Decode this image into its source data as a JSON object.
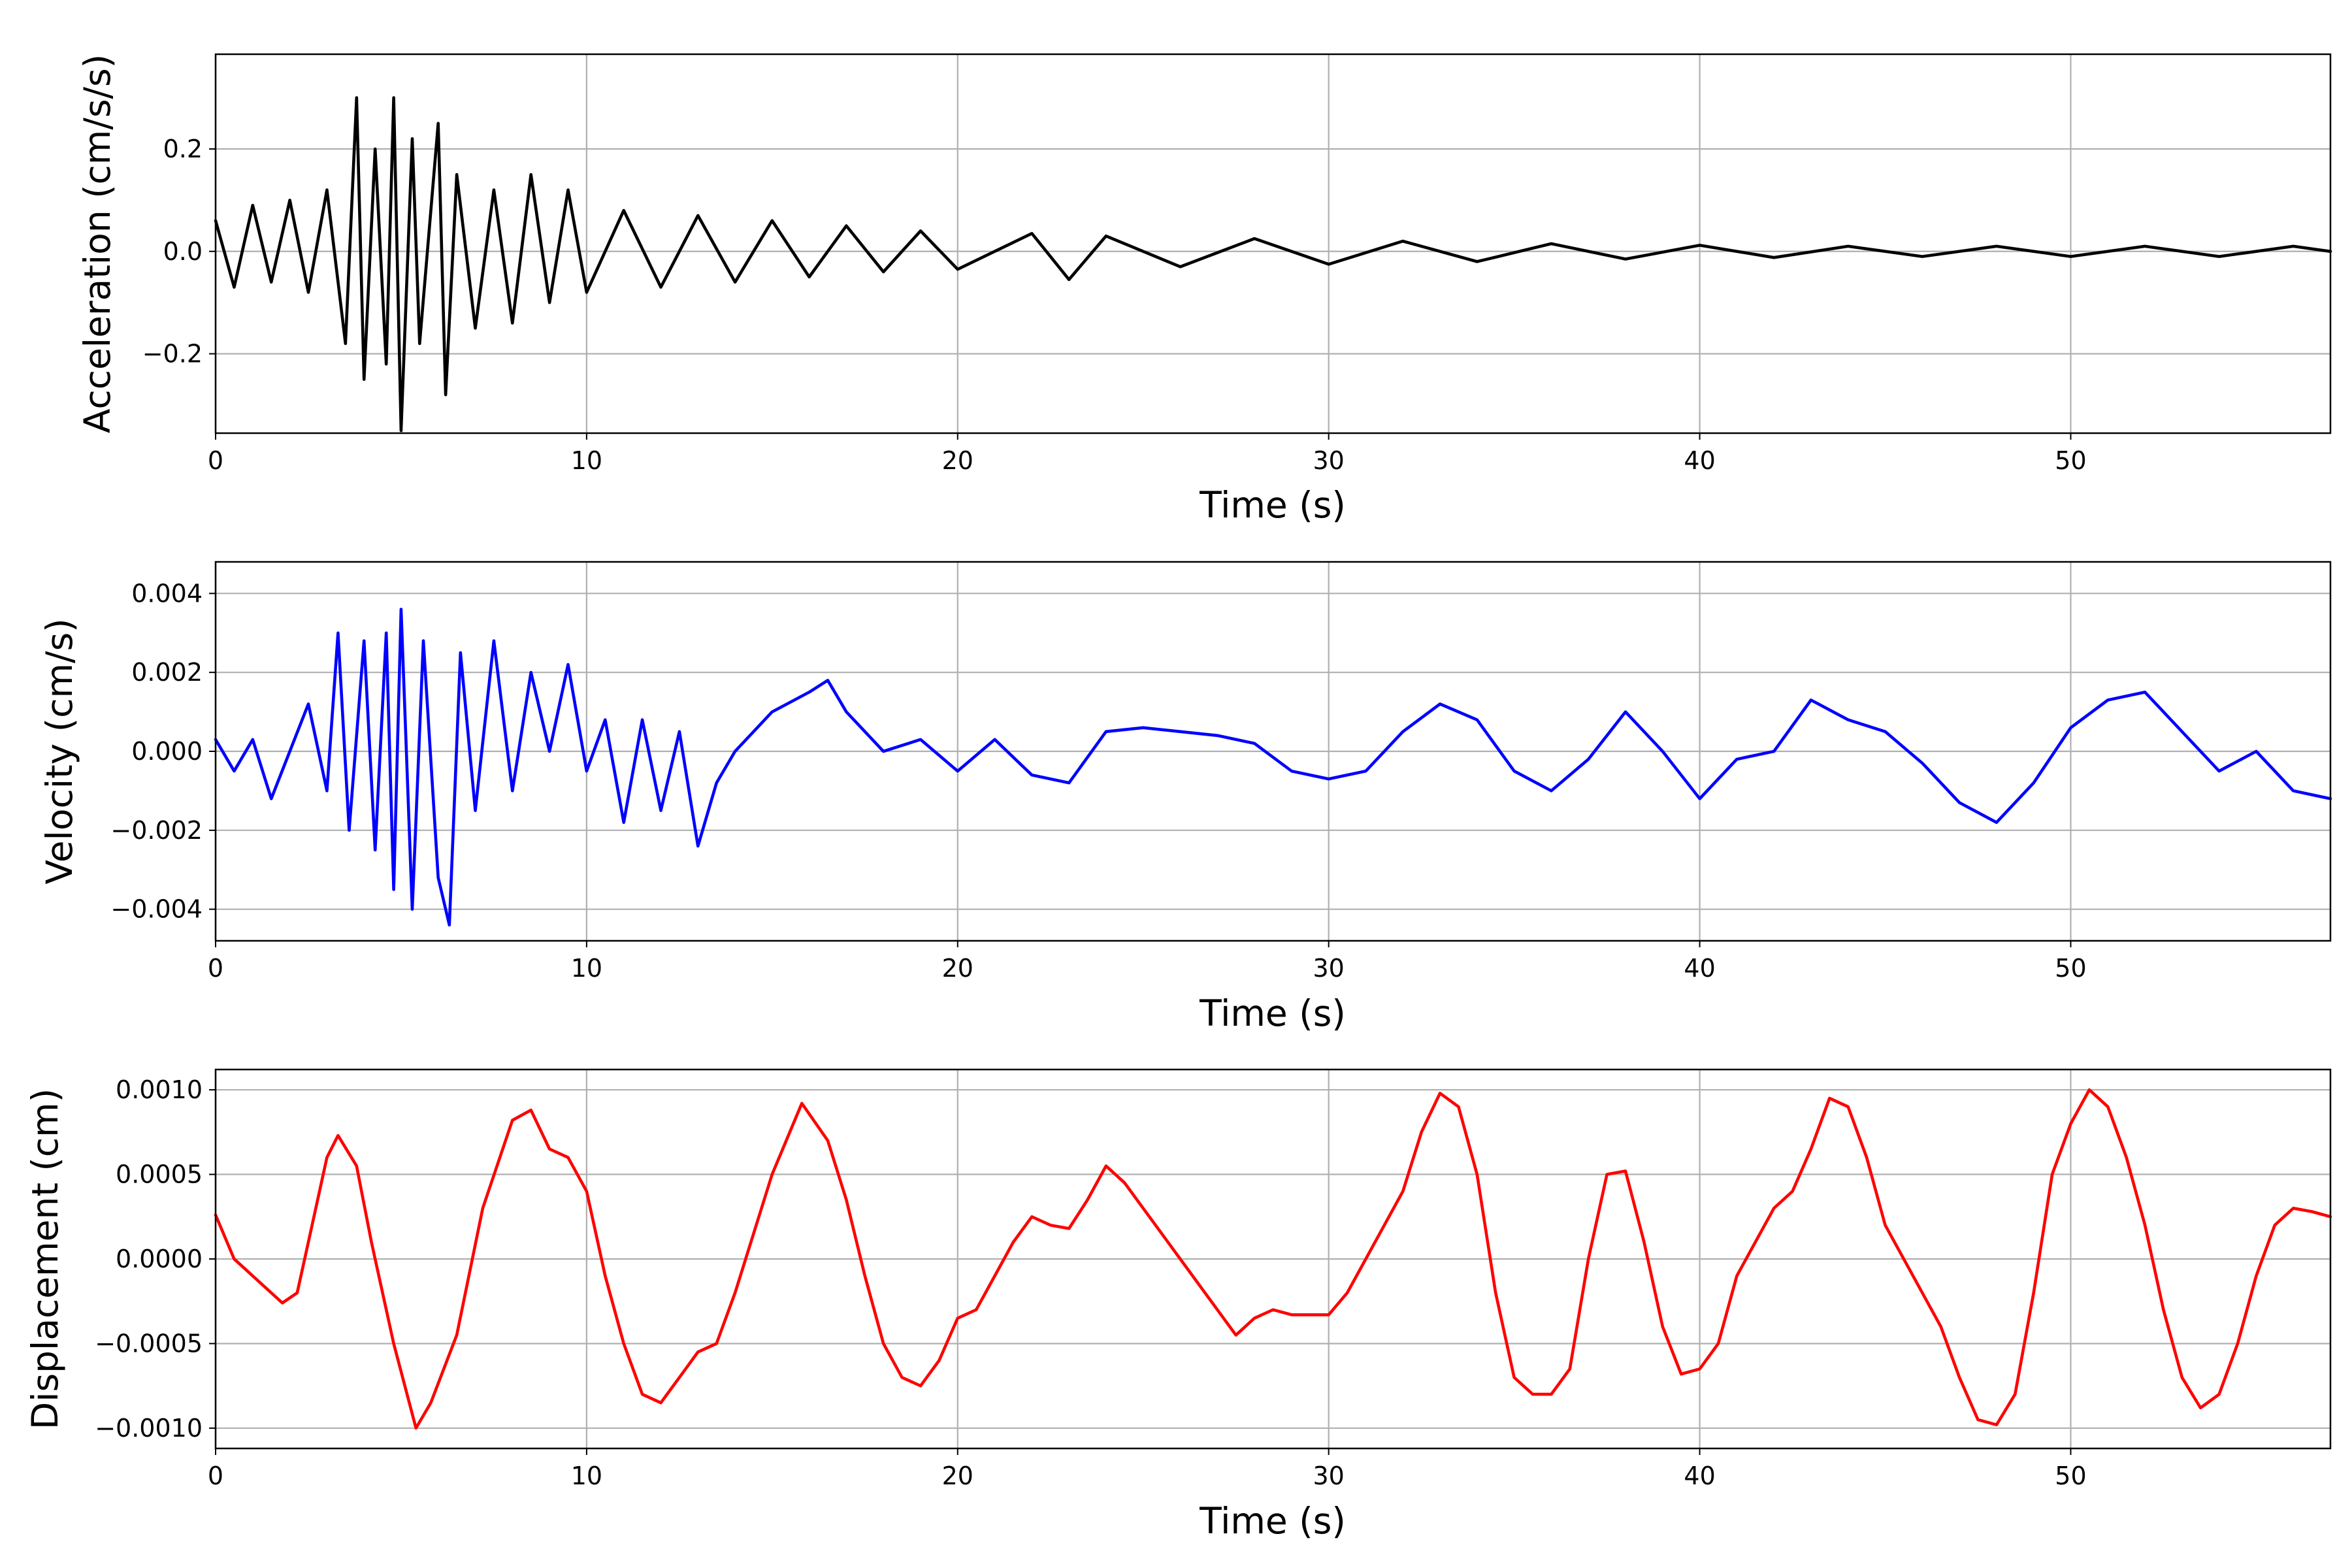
{
  "chart_data": [
    {
      "type": "line",
      "xlabel": "Time (s)",
      "ylabel": "Acceleration (cm/s/s)",
      "xlim": [
        0,
        57
      ],
      "ylim": [
        -0.355,
        0.385
      ],
      "xticks": [
        0,
        10,
        20,
        30,
        40,
        50
      ],
      "yticks": [
        -0.2,
        0.0,
        0.2
      ],
      "ytick_decimals": 1,
      "grid": true,
      "color": "#000000",
      "series": [
        {
          "x": [
            0,
            0.5,
            1,
            1.5,
            2,
            2.5,
            3,
            3.5,
            3.8,
            4,
            4.3,
            4.6,
            4.8,
            5,
            5.3,
            5.5,
            6,
            6.2,
            6.5,
            7,
            7.5,
            8,
            8.5,
            9,
            9.5,
            10,
            11,
            12,
            13,
            14,
            15,
            16,
            17,
            18,
            19,
            20,
            22,
            23,
            24,
            26,
            28,
            30,
            32,
            34,
            36,
            38,
            40,
            42,
            44,
            46,
            48,
            50,
            52,
            54,
            56,
            57
          ],
          "y": [
            0.06,
            -0.07,
            0.09,
            -0.06,
            0.1,
            -0.08,
            0.12,
            -0.18,
            0.3,
            -0.25,
            0.2,
            -0.22,
            0.3,
            -0.35,
            0.22,
            -0.18,
            0.25,
            -0.28,
            0.15,
            -0.15,
            0.12,
            -0.14,
            0.15,
            -0.1,
            0.12,
            -0.08,
            0.08,
            -0.07,
            0.07,
            -0.06,
            0.06,
            -0.05,
            0.05,
            -0.04,
            0.04,
            -0.035,
            0.035,
            -0.055,
            0.03,
            -0.03,
            0.025,
            -0.025,
            0.02,
            -0.02,
            0.015,
            -0.015,
            0.012,
            -0.012,
            0.01,
            -0.01,
            0.01,
            -0.01,
            0.01,
            -0.01,
            0.01,
            0.0
          ]
        }
      ]
    },
    {
      "type": "line",
      "xlabel": "Time (s)",
      "ylabel": "Velocity (cm/s)",
      "xlim": [
        0,
        57
      ],
      "ylim": [
        -0.0048,
        0.0048
      ],
      "xticks": [
        0,
        10,
        20,
        30,
        40,
        50
      ],
      "yticks": [
        -0.004,
        -0.002,
        0.0,
        0.002,
        0.004
      ],
      "ytick_decimals": 3,
      "grid": true,
      "color": "#0000ff",
      "series": [
        {
          "x": [
            0,
            0.5,
            1,
            1.5,
            2,
            2.5,
            3,
            3.3,
            3.6,
            4,
            4.3,
            4.6,
            4.8,
            5,
            5.3,
            5.6,
            6,
            6.3,
            6.6,
            7,
            7.5,
            8,
            8.5,
            9,
            9.5,
            10,
            10.5,
            11,
            11.5,
            12,
            12.5,
            13,
            13.5,
            14,
            15,
            16,
            16.5,
            17,
            18,
            19,
            20,
            21,
            22,
            23,
            24,
            25,
            26,
            27,
            28,
            29,
            30,
            31,
            32,
            33,
            34,
            35,
            36,
            37,
            38,
            39,
            40,
            41,
            42,
            43,
            44,
            45,
            46,
            47,
            48,
            49,
            50,
            51,
            52,
            53,
            54,
            55,
            56,
            57
          ],
          "y": [
            0.0003,
            -0.0005,
            0.0003,
            -0.0012,
            0.0,
            0.0012,
            -0.001,
            0.003,
            -0.002,
            0.0028,
            -0.0025,
            0.003,
            -0.0035,
            0.0036,
            -0.004,
            0.0028,
            -0.0032,
            -0.0044,
            0.0025,
            -0.0015,
            0.0028,
            -0.001,
            0.002,
            0.0,
            0.0022,
            -0.0005,
            0.0008,
            -0.0018,
            0.0008,
            -0.0015,
            0.0005,
            -0.0024,
            -0.0008,
            0.0,
            0.001,
            0.0015,
            0.0018,
            0.001,
            0.0,
            0.0003,
            -0.0005,
            0.0003,
            -0.0006,
            -0.0008,
            0.0005,
            0.0006,
            0.0005,
            0.0004,
            0.0002,
            -0.0005,
            -0.0007,
            -0.0005,
            0.0005,
            0.0012,
            0.0008,
            -0.0005,
            -0.001,
            -0.0002,
            0.001,
            0.0,
            -0.0012,
            -0.0002,
            0.0,
            0.0013,
            0.0008,
            0.0005,
            -0.0003,
            -0.0013,
            -0.0018,
            -0.0008,
            0.0006,
            0.0013,
            0.0015,
            0.0005,
            -0.0005,
            0.0,
            -0.001,
            -0.0012
          ]
        }
      ]
    },
    {
      "type": "line",
      "xlabel": "Time (s)",
      "ylabel": "Displacement (cm)",
      "xlim": [
        0,
        57
      ],
      "ylim": [
        -0.00112,
        0.00112
      ],
      "xticks": [
        0,
        10,
        20,
        30,
        40,
        50
      ],
      "yticks": [
        -0.001,
        -0.0005,
        0.0,
        0.0005,
        0.001
      ],
      "ytick_decimals": 4,
      "grid": true,
      "color": "#ff0000",
      "series": [
        {
          "x": [
            0,
            0.5,
            1,
            1.5,
            1.8,
            2.2,
            2.5,
            3,
            3.3,
            3.8,
            4.2,
            4.8,
            5.4,
            5.8,
            6.5,
            7.2,
            8,
            8.5,
            9,
            9.5,
            10,
            10.5,
            11,
            11.5,
            12,
            12.5,
            13,
            13.5,
            14,
            15,
            15.8,
            16.5,
            17,
            17.5,
            18,
            18.5,
            19,
            19.5,
            20,
            20.5,
            21,
            21.5,
            22,
            22.5,
            23,
            23.5,
            24,
            24.5,
            25,
            26,
            27,
            27.5,
            28,
            28.5,
            29,
            30,
            30.5,
            31,
            31.5,
            32,
            32.5,
            33,
            33.5,
            34,
            34.5,
            35,
            35.5,
            36,
            36.5,
            37,
            37.5,
            38,
            38.5,
            39,
            39.5,
            40,
            40.5,
            41,
            41.5,
            42,
            42.5,
            43,
            43.5,
            44,
            44.5,
            45,
            46,
            46.5,
            47,
            47.5,
            48,
            48.5,
            49,
            49.5,
            50,
            50.5,
            51,
            51.5,
            52,
            52.5,
            53,
            53.5,
            54,
            54.5,
            55,
            55.5,
            56,
            56.5,
            57
          ],
          "y": [
            0.00026,
            0.0,
            -0.0001,
            -0.0002,
            -0.00026,
            -0.0002,
            0.0001,
            0.0006,
            0.00073,
            0.00055,
            0.0001,
            -0.0005,
            -0.001,
            -0.00085,
            -0.00045,
            0.0003,
            0.00082,
            0.00088,
            0.00065,
            0.0006,
            0.0004,
            -0.0001,
            -0.0005,
            -0.0008,
            -0.00085,
            -0.0007,
            -0.00055,
            -0.0005,
            -0.0002,
            0.0005,
            0.00092,
            0.0007,
            0.00035,
            -0.0001,
            -0.0005,
            -0.0007,
            -0.00075,
            -0.0006,
            -0.00035,
            -0.0003,
            -0.0001,
            0.0001,
            0.00025,
            0.0002,
            0.00018,
            0.00035,
            0.00055,
            0.00045,
            0.0003,
            0.0,
            -0.0003,
            -0.00045,
            -0.00035,
            -0.0003,
            -0.00033,
            -0.00033,
            -0.0002,
            0.0,
            0.0002,
            0.0004,
            0.00075,
            0.00098,
            0.0009,
            0.0005,
            -0.0002,
            -0.0007,
            -0.0008,
            -0.0008,
            -0.00065,
            0.0,
            0.0005,
            0.00052,
            0.0001,
            -0.0004,
            -0.00068,
            -0.00065,
            -0.0005,
            -0.0001,
            0.0001,
            0.0003,
            0.0004,
            0.00065,
            0.00095,
            0.0009,
            0.0006,
            0.0002,
            -0.0002,
            -0.0004,
            -0.0007,
            -0.00095,
            -0.00098,
            -0.0008,
            -0.0002,
            0.0005,
            0.0008,
            0.001,
            0.0009,
            0.0006,
            0.0002,
            -0.0003,
            -0.0007,
            -0.00088,
            -0.0008,
            -0.0005,
            -0.0001,
            0.0002,
            0.0003,
            0.00028,
            0.00025
          ]
        }
      ]
    }
  ]
}
